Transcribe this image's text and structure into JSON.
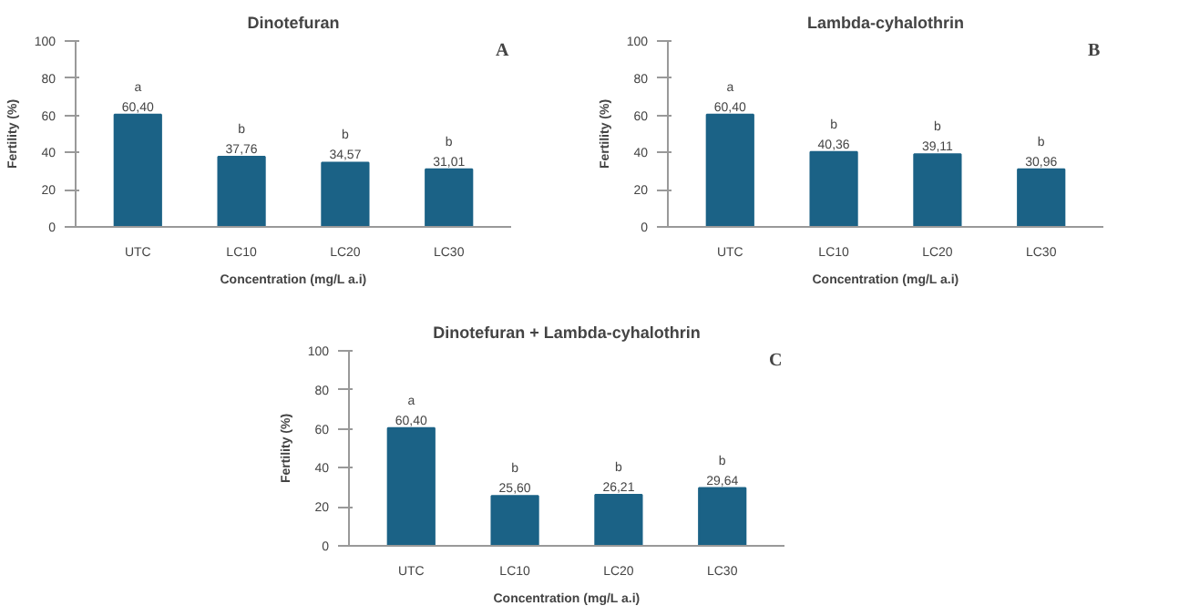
{
  "chart_data": [
    {
      "type": "bar",
      "title": "Dinotefuran",
      "xlabel": "Concentration (mg/L a.i)",
      "ylabel": "Fertility (%)",
      "categories": [
        "UTC",
        "LC10",
        "LC20",
        "LC30"
      ],
      "values": [
        60.4,
        37.76,
        34.57,
        31.01
      ],
      "value_labels": [
        "60,40",
        "37,76",
        "34,57",
        "31,01"
      ],
      "color": "#1b6286",
      "ylim": [
        0,
        100
      ],
      "yticks": [
        0,
        20,
        40,
        60,
        80,
        100
      ],
      "grid": false,
      "annotations": [
        "A",
        {
          "text": "a",
          "x": "UTC",
          "y": 60.4
        },
        {
          "text": "b",
          "x": "LC10",
          "y": 37.76
        },
        {
          "text": "b",
          "x": "LC20",
          "y": 34.57
        },
        {
          "text": "b",
          "x": "LC30",
          "y": 31.01
        }
      ]
    },
    {
      "type": "bar",
      "title": "Lambda-cyhalothrin",
      "xlabel": "Concentration (mg/L a.i)",
      "ylabel": "Fertility (%)",
      "categories": [
        "UTC",
        "LC10",
        "LC20",
        "LC30"
      ],
      "values": [
        60.4,
        40.36,
        39.11,
        30.96
      ],
      "value_labels": [
        "60,40",
        "40,36",
        "39,11",
        "30,96"
      ],
      "color": "#1b6286",
      "ylim": [
        0,
        100
      ],
      "yticks": [
        0,
        20,
        40,
        60,
        80,
        100
      ],
      "grid": false,
      "annotations": [
        "B",
        {
          "text": "a",
          "x": "UTC",
          "y": 60.4
        },
        {
          "text": "b",
          "x": "LC10",
          "y": 40.36
        },
        {
          "text": "b",
          "x": "LC20",
          "y": 39.11
        },
        {
          "text": "b",
          "x": "LC30",
          "y": 30.96
        }
      ]
    },
    {
      "type": "bar",
      "title": "Dinotefuran + Lambda-cyhalothrin",
      "xlabel": "Concentration (mg/L a.i)",
      "ylabel": "Fertility (%)",
      "categories": [
        "UTC",
        "LC10",
        "LC20",
        "LC30"
      ],
      "values": [
        60.4,
        25.6,
        26.21,
        29.64
      ],
      "value_labels": [
        "60,40",
        "25,60",
        "26,21",
        "29,64"
      ],
      "color": "#1b6286",
      "ylim": [
        0,
        100
      ],
      "yticks": [
        0,
        20,
        40,
        60,
        80,
        100
      ],
      "grid": false,
      "annotations": [
        "C",
        {
          "text": "a",
          "x": "UTC",
          "y": 60.4
        },
        {
          "text": "b",
          "x": "LC10",
          "y": 25.6
        },
        {
          "text": "b",
          "x": "LC20",
          "y": 26.21
        },
        {
          "text": "b",
          "x": "LC30",
          "y": 29.64
        }
      ]
    }
  ]
}
